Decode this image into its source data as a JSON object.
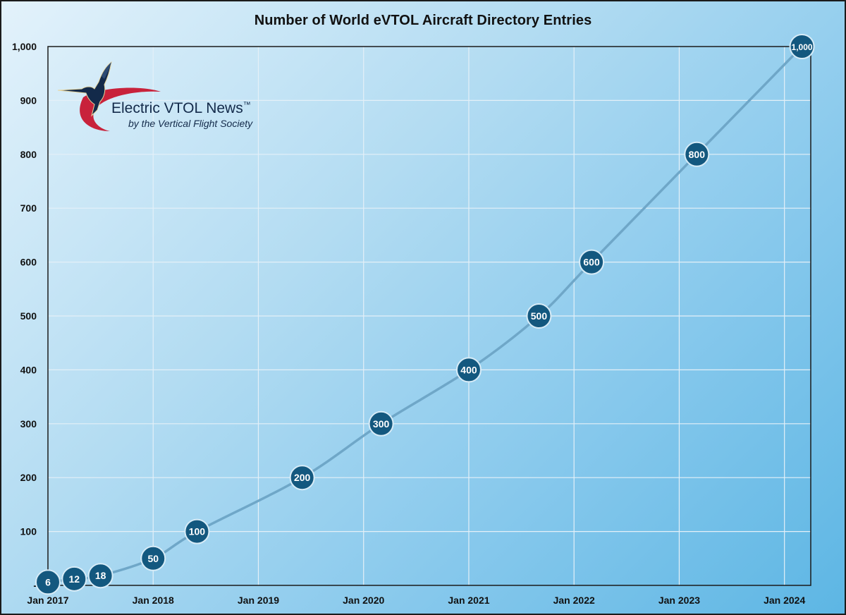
{
  "chart_data": {
    "type": "line",
    "title": "Number of World eVTOL Aircraft Directory Entries",
    "xlabel": "",
    "ylabel": "",
    "x_tick_labels": [
      "Jan 2017",
      "Jan 2018",
      "Jan 2019",
      "Jan 2020",
      "Jan 2021",
      "Jan 2022",
      "Jan 2023",
      "Jan 2024"
    ],
    "y_tick_labels": [
      "-",
      "100",
      "200",
      "300",
      "400",
      "500",
      "600",
      "700",
      "800",
      "900",
      "1,000"
    ],
    "ylim": [
      0,
      1000
    ],
    "xlim": [
      "2017-01",
      "2024-04"
    ],
    "grid": true,
    "legend": "none",
    "series": [
      {
        "x": [
          "2017-01",
          "2017-04",
          "2017-07",
          "2018-01",
          "2018-06",
          "2019-06",
          "2020-03",
          "2021-01",
          "2021-09",
          "2022-03",
          "2023-03",
          "2024-03"
        ],
        "values": [
          6,
          12,
          18,
          50,
          100,
          200,
          300,
          400,
          500,
          600,
          800,
          1000
        ],
        "labels": [
          "6",
          "12",
          "18",
          "50",
          "100",
          "200",
          "300",
          "400",
          "500",
          "600",
          "800",
          "1,000"
        ]
      }
    ],
    "colors": {
      "line": "#6fa7c8",
      "marker": "#13587f",
      "marker_border": "#d8ecf7",
      "grid": "#e4f0f8",
      "axis": "#1b1b1b"
    }
  },
  "logo": {
    "name": "Electric VTOL News",
    "trademark": "™",
    "tagline": "by the Vertical Flight Society"
  }
}
